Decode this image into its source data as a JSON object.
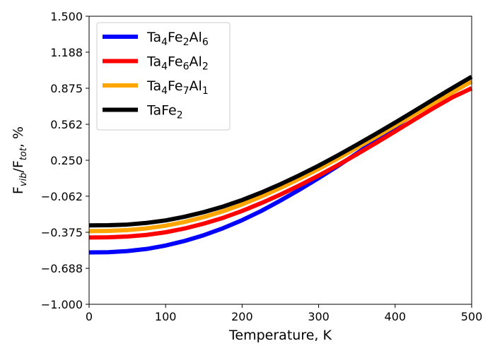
{
  "chart_data": {
    "type": "line",
    "title": "",
    "xlabel": "Temperature, K",
    "ylabel": {
      "base": "F",
      "sub1": "vib",
      "mid": "/F",
      "sub2": "tot",
      "suffix": ", %"
    },
    "xlim": [
      0,
      500
    ],
    "ylim": [
      -1.0,
      1.5
    ],
    "xticks": [
      0,
      100,
      200,
      300,
      400,
      500
    ],
    "xtick_labels": [
      "0",
      "100",
      "200",
      "300",
      "400",
      "500"
    ],
    "yticks": [
      -1.0,
      -0.688,
      -0.375,
      -0.062,
      0.25,
      0.562,
      0.875,
      1.188,
      1.5
    ],
    "ytick_labels": [
      "−1.000",
      "−0.688",
      "−0.375",
      "−0.062",
      "0.250",
      "0.562",
      "0.875",
      "1.188",
      "1.500"
    ],
    "legend_position": "top-left",
    "x": [
      0,
      25,
      50,
      75,
      100,
      125,
      150,
      175,
      200,
      225,
      250,
      275,
      300,
      325,
      350,
      375,
      400,
      425,
      450,
      475,
      500
    ],
    "series": [
      {
        "name": "Ta4Fe2Al6",
        "label_parts": [
          [
            "Ta",
            ""
          ],
          [
            "4",
            "sub"
          ],
          [
            "Fe",
            ""
          ],
          [
            "2",
            "sub"
          ],
          [
            "Al",
            ""
          ],
          [
            "6",
            "sub"
          ]
        ],
        "color": "#0000ff",
        "values": [
          -0.55,
          -0.548,
          -0.538,
          -0.52,
          -0.49,
          -0.45,
          -0.4,
          -0.34,
          -0.27,
          -0.19,
          -0.1,
          -0.005,
          0.095,
          0.2,
          0.31,
          0.425,
          0.54,
          0.655,
          0.765,
          0.86,
          0.935
        ]
      },
      {
        "name": "Ta4Fe6Al2",
        "label_parts": [
          [
            "Ta",
            ""
          ],
          [
            "4",
            "sub"
          ],
          [
            "Fe",
            ""
          ],
          [
            "6",
            "sub"
          ],
          [
            "Al",
            ""
          ],
          [
            "2",
            "sub"
          ]
        ],
        "color": "#ff0000",
        "values": [
          -0.42,
          -0.419,
          -0.412,
          -0.398,
          -0.375,
          -0.342,
          -0.3,
          -0.25,
          -0.19,
          -0.122,
          -0.048,
          0.032,
          0.117,
          0.207,
          0.302,
          0.4,
          0.5,
          0.602,
          0.702,
          0.797,
          0.875
        ]
      },
      {
        "name": "Ta4Fe7Al1",
        "label_parts": [
          [
            "Ta",
            ""
          ],
          [
            "4",
            "sub"
          ],
          [
            "Fe",
            ""
          ],
          [
            "7",
            "sub"
          ],
          [
            "Al",
            ""
          ],
          [
            "1",
            "sub"
          ]
        ],
        "color": "#ffa500",
        "values": [
          -0.365,
          -0.363,
          -0.356,
          -0.341,
          -0.318,
          -0.285,
          -0.243,
          -0.193,
          -0.133,
          -0.065,
          0.01,
          0.09,
          0.175,
          0.265,
          0.358,
          0.453,
          0.55,
          0.648,
          0.745,
          0.84,
          0.935
        ]
      },
      {
        "name": "TaFe2",
        "label_parts": [
          [
            "TaFe",
            ""
          ],
          [
            "2",
            "sub"
          ]
        ],
        "color": "#000000",
        "values": [
          -0.315,
          -0.314,
          -0.308,
          -0.294,
          -0.272,
          -0.24,
          -0.2,
          -0.152,
          -0.095,
          -0.03,
          0.042,
          0.12,
          0.203,
          0.292,
          0.385,
          0.48,
          0.577,
          0.677,
          0.778,
          0.878,
          0.975
        ]
      }
    ]
  }
}
